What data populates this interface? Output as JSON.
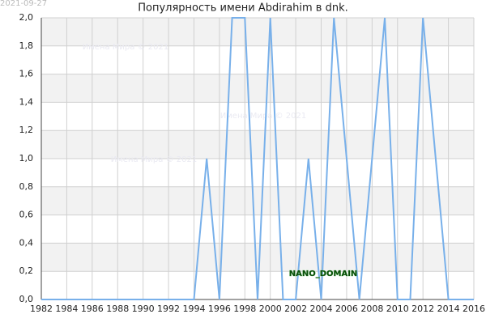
{
  "chart_data": {
    "type": "line",
    "date": "2021-09-27",
    "title": "Популярность имени Abdirahim в dnk.",
    "watermarks": [
      "Имена Мира © 2021",
      "Имена Мира © 2021",
      "Имена Мира © 2021"
    ],
    "badge": "NANO_DOMAIN",
    "x": [
      1982,
      1983,
      1984,
      1985,
      1986,
      1987,
      1988,
      1989,
      1990,
      1991,
      1992,
      1993,
      1994,
      1995,
      1996,
      1997,
      1998,
      1999,
      2000,
      2001,
      2002,
      2003,
      2004,
      2005,
      2006,
      2007,
      2008,
      2009,
      2010,
      2011,
      2012,
      2013,
      2014,
      2015,
      2016
    ],
    "series": [
      {
        "color": "#78b0ea",
        "values": [
          0,
          0,
          0,
          0,
          0,
          0,
          0,
          0,
          0,
          0,
          0,
          0,
          0,
          1,
          0,
          2,
          2,
          0,
          2,
          0,
          0,
          1,
          0,
          2,
          1,
          0,
          1,
          2,
          0,
          0,
          2,
          1,
          0,
          0,
          0
        ]
      }
    ],
    "xlim": [
      1982,
      2016
    ],
    "xticks": [
      1982,
      1984,
      1986,
      1988,
      1990,
      1992,
      1994,
      1996,
      1998,
      2000,
      2002,
      2004,
      2006,
      2008,
      2010,
      2012,
      2014,
      2016
    ],
    "ylim": [
      0,
      2
    ],
    "yticks": [
      {
        "value": 0,
        "label": "0,0"
      },
      {
        "value": 0.2,
        "label": "0,2"
      },
      {
        "value": 0.4,
        "label": "0,4"
      },
      {
        "value": 0.6,
        "label": "0,6"
      },
      {
        "value": 0.8,
        "label": "0,8"
      },
      {
        "value": 1,
        "label": "1,0"
      },
      {
        "value": 1.2,
        "label": "1,2"
      },
      {
        "value": 1.4,
        "label": "1,4"
      },
      {
        "value": 1.6,
        "label": "1,6"
      },
      {
        "value": 1.8,
        "label": "1,8"
      },
      {
        "value": 2,
        "label": "2,0"
      }
    ],
    "grid": true
  }
}
